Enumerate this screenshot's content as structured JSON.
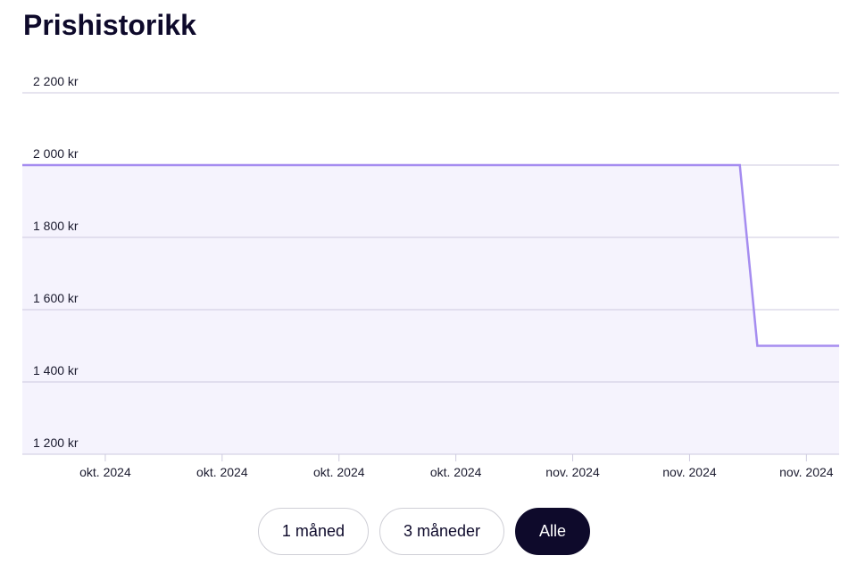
{
  "header": {
    "title": "Prishistorikk"
  },
  "chart_data": {
    "type": "line",
    "x": [
      -0.71,
      5.43,
      5.58,
      6.28
    ],
    "values": [
      2000,
      2000,
      1500,
      1500
    ],
    "color": "#a58cf0",
    "fill": "#f5f3fd",
    "xlim": [
      -0.71,
      6.28
    ],
    "xticks": [
      {
        "value": 0,
        "label": "okt. 2024"
      },
      {
        "value": 1,
        "label": "okt. 2024"
      },
      {
        "value": 2,
        "label": "okt. 2024"
      },
      {
        "value": 3,
        "label": "okt. 2024"
      },
      {
        "value": 4,
        "label": "nov. 2024"
      },
      {
        "value": 5,
        "label": "nov. 2024"
      },
      {
        "value": 6,
        "label": "nov. 2024"
      }
    ],
    "ylim": [
      1200,
      2200
    ],
    "yticks": [
      {
        "value": 1200,
        "label": "1 200 kr"
      },
      {
        "value": 1400,
        "label": "1 400 kr"
      },
      {
        "value": 1600,
        "label": "1 600 kr"
      },
      {
        "value": 1800,
        "label": "1 800 kr"
      },
      {
        "value": 2000,
        "label": "2 000 kr"
      },
      {
        "value": 2200,
        "label": "2 200 kr"
      }
    ],
    "grid": true
  },
  "controls": {
    "buttons": [
      "1 måned",
      "3 måneder",
      "Alle"
    ],
    "active": 2
  }
}
